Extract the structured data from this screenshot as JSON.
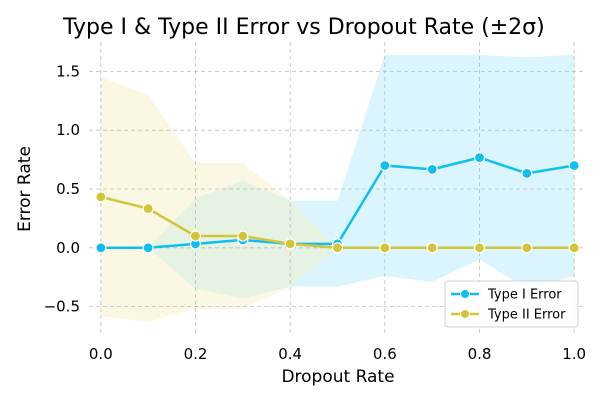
{
  "chart_data": {
    "type": "line",
    "title": "Type I & Type II Error vs Dropout Rate (±2σ)",
    "xlabel": "Dropout Rate",
    "ylabel": "Error Rate",
    "xlim": [
      -0.025,
      1.025
    ],
    "ylim": [
      -0.75,
      1.75
    ],
    "x_ticks": [
      0.0,
      0.2,
      0.4,
      0.6,
      0.8,
      1.0
    ],
    "y_ticks": [
      -0.5,
      0.0,
      0.5,
      1.0,
      1.5
    ],
    "grid": true,
    "legend_position": "bottom-right",
    "x": [
      0.0,
      0.1,
      0.2,
      0.3,
      0.4,
      0.5,
      0.6,
      0.7,
      0.8,
      0.9,
      1.0
    ],
    "series": [
      {
        "name": "Type I Error",
        "color": "#0fbfef",
        "band_color": "#aee8fb",
        "values": [
          0.0,
          0.0,
          0.033,
          0.067,
          0.033,
          0.033,
          0.7,
          0.667,
          0.767,
          0.633,
          0.7
        ],
        "upper": [
          0.0,
          0.0,
          0.42,
          0.57,
          0.4,
          0.4,
          1.64,
          1.64,
          1.64,
          1.62,
          1.64
        ],
        "lower": [
          0.0,
          0.0,
          -0.35,
          -0.43,
          -0.33,
          -0.33,
          -0.24,
          -0.29,
          -0.1,
          -0.35,
          -0.24
        ]
      },
      {
        "name": "Type II Error",
        "color": "#d4c43a",
        "band_color": "#f5efc0",
        "values": [
          0.433,
          0.333,
          0.1,
          0.1,
          0.033,
          0.0,
          0.0,
          0.0,
          0.0,
          0.0,
          0.0
        ],
        "upper": [
          1.45,
          1.3,
          0.72,
          0.72,
          0.4,
          0.0,
          0.0,
          0.0,
          0.0,
          0.0,
          0.0
        ],
        "lower": [
          -0.58,
          -0.63,
          -0.52,
          -0.52,
          -0.33,
          0.0,
          0.0,
          0.0,
          0.0,
          0.0,
          0.0
        ]
      }
    ]
  }
}
